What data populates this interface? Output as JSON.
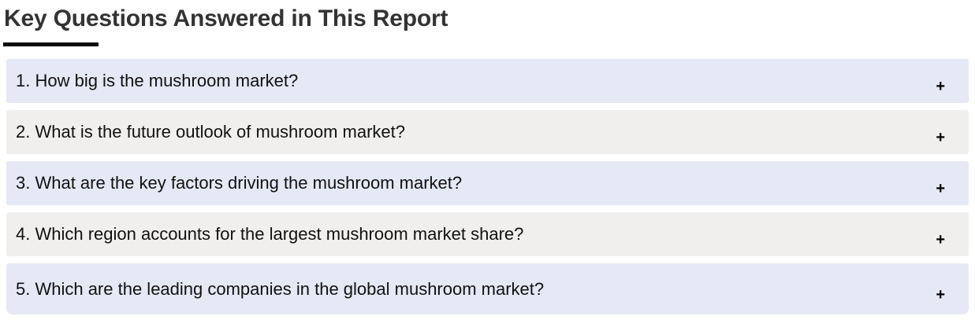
{
  "page": {
    "title": "Key Questions Answered in This Report"
  },
  "accordion": {
    "toggle_symbol": "+",
    "items": [
      {
        "label": "1. How big is the mushroom market?"
      },
      {
        "label": "2. What is the future outlook of mushroom market?"
      },
      {
        "label": "3. What are the key factors driving the mushroom market?"
      },
      {
        "label": "4. Which region accounts for the largest mushroom market share?"
      },
      {
        "label": "5. Which are the leading companies in the global mushroom market?"
      }
    ]
  },
  "colors": {
    "row_alt_blue": "#e5e8f5",
    "row_alt_gray": "#f0efee",
    "title_text": "#333333",
    "question_text": "#111111",
    "plus": "#000000"
  }
}
